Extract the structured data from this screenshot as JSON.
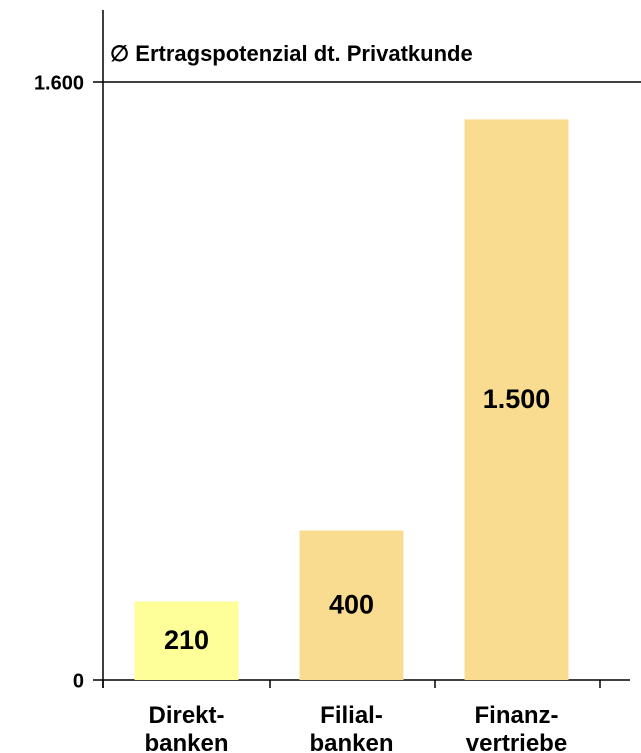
{
  "chart_data": {
    "type": "bar",
    "title": "∅ Ertragspotenzial dt. Privatkunde",
    "categories": [
      "Direkt-\nbanken",
      "Filial-\nbanken",
      "Finanz-\nvertriebe"
    ],
    "values": [
      210,
      400,
      1500
    ],
    "value_labels": [
      "210",
      "400",
      "1.500"
    ],
    "colors": [
      "#ffff99",
      "#f9dc8f",
      "#f9dc8f"
    ],
    "ylim": [
      0,
      1600
    ],
    "yticks": [
      0,
      {
        "value": 1600,
        "label": "1.600"
      }
    ],
    "grid": false
  }
}
